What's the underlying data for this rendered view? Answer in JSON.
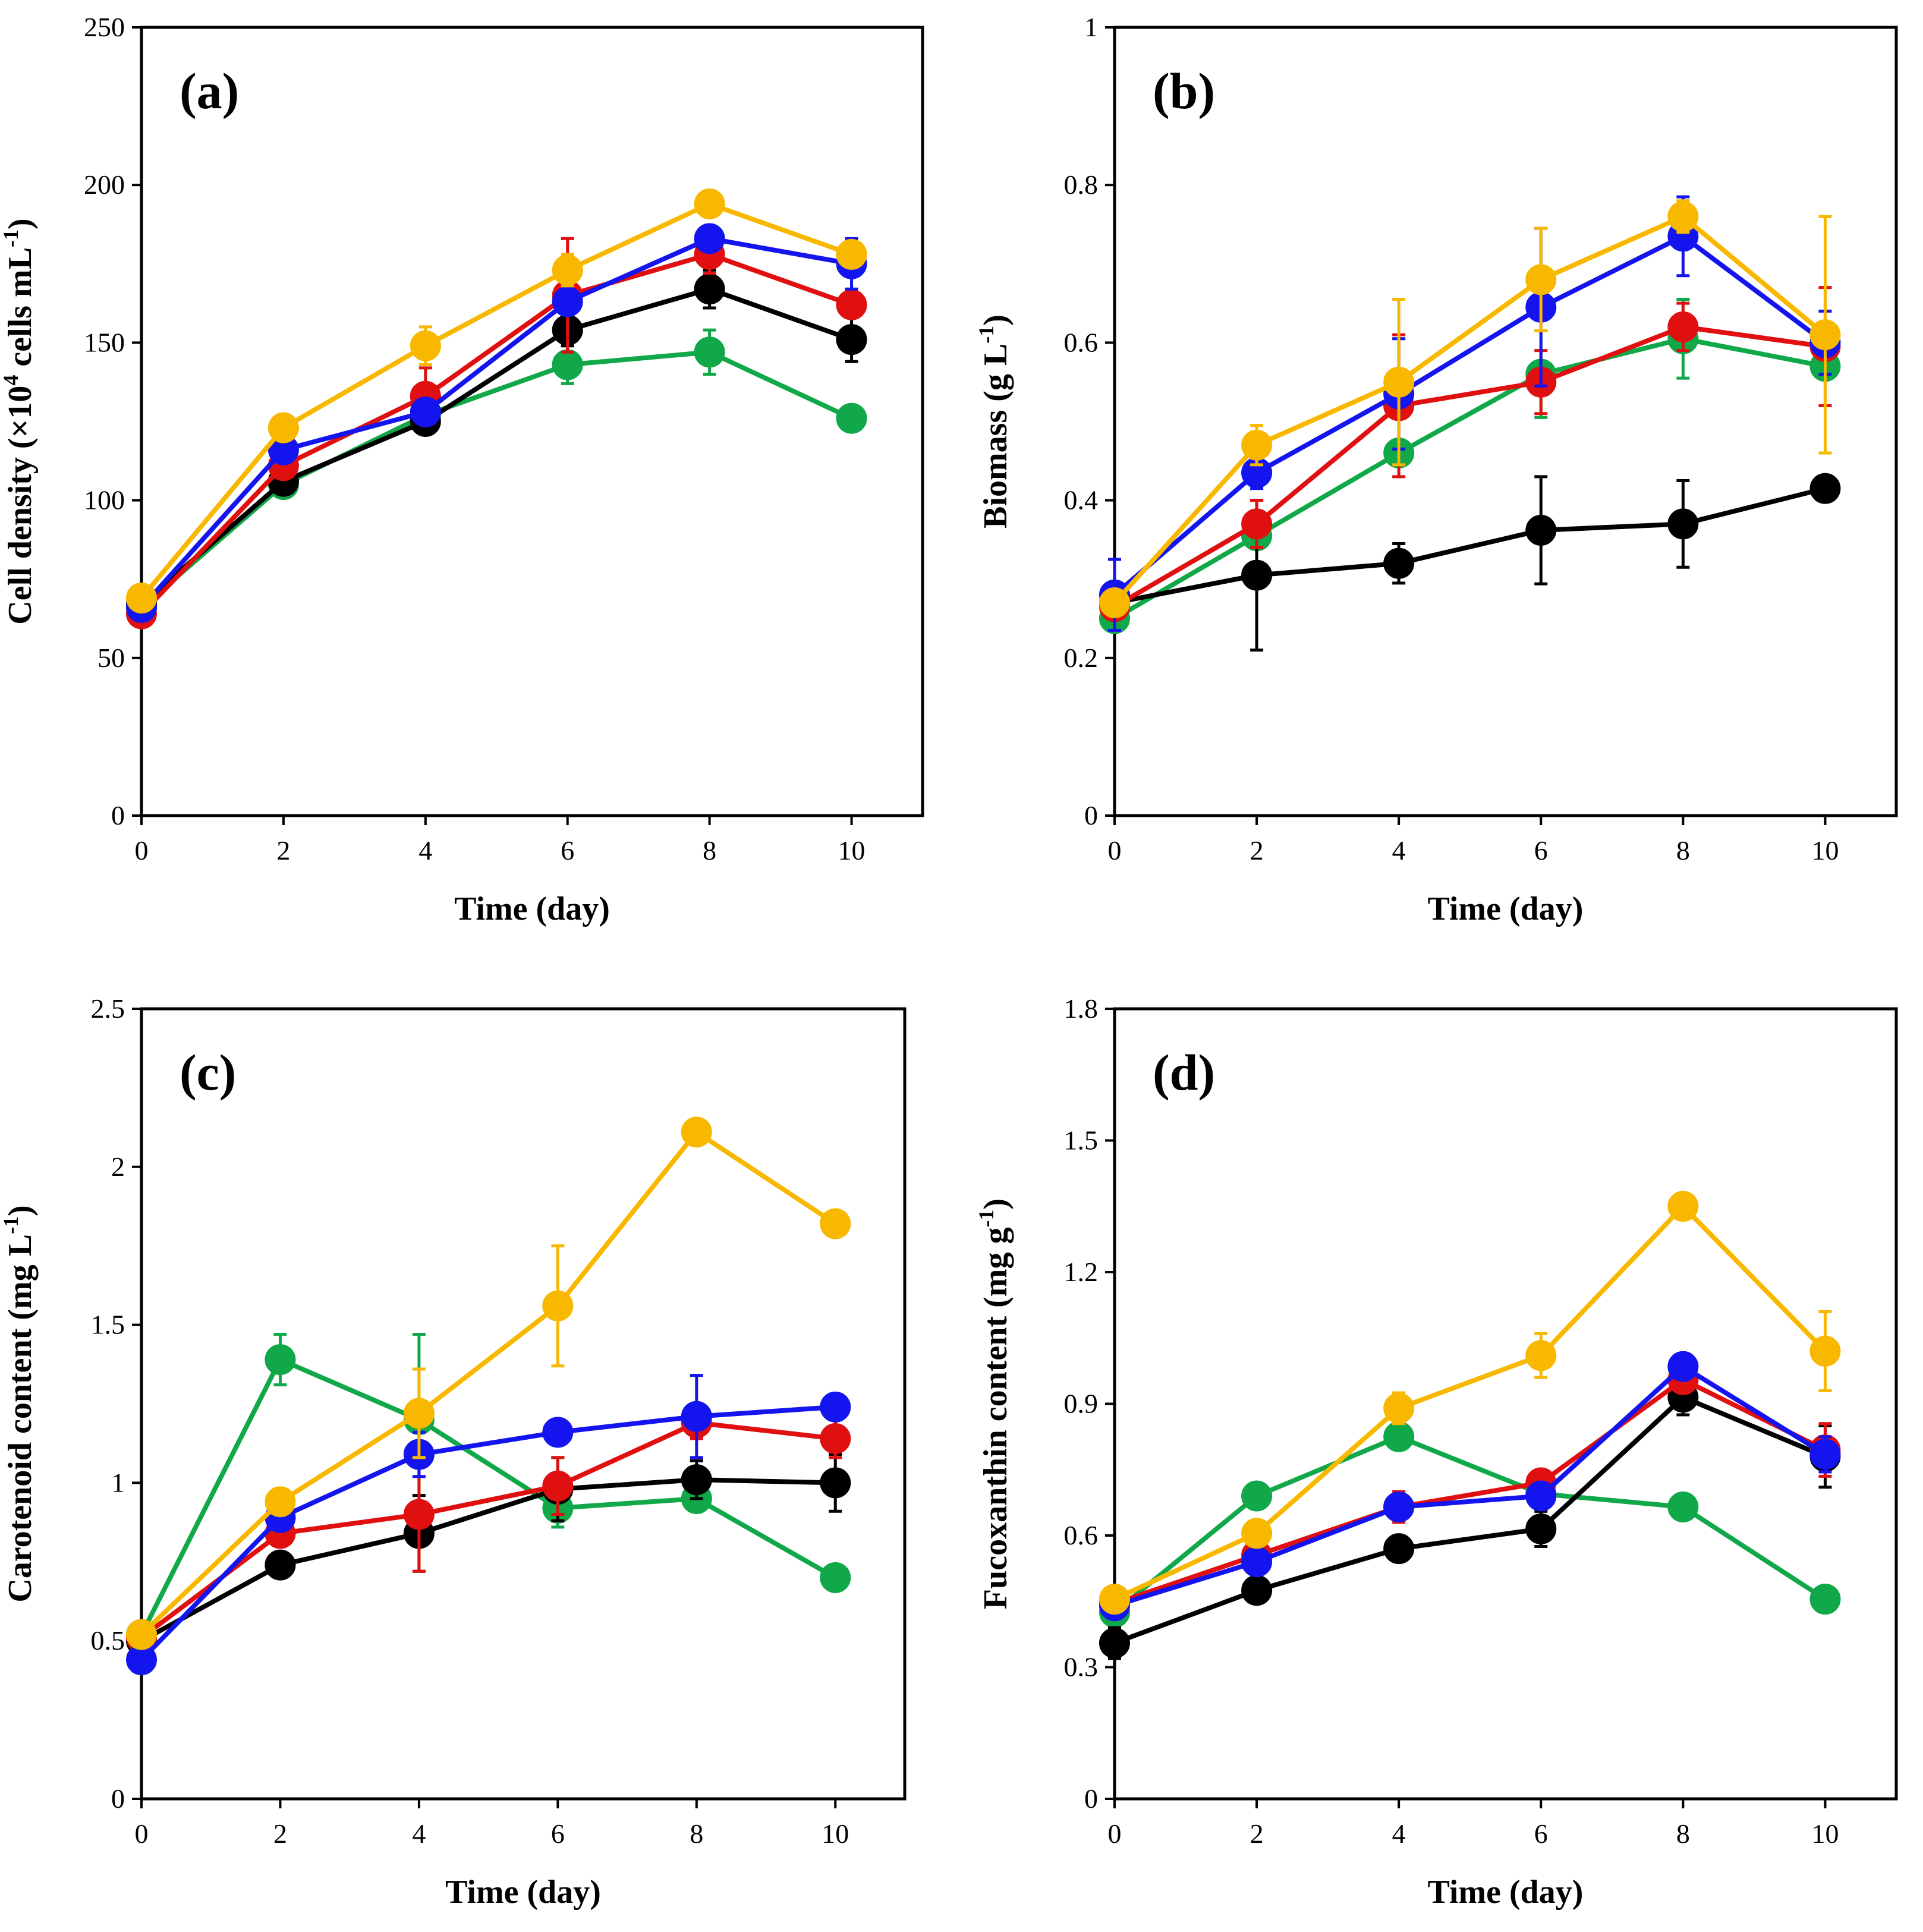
{
  "figure": {
    "series_colors": {
      "black": "#000000",
      "red": "#e01010",
      "blue": "#1414ee",
      "green": "#10a848",
      "yellow": "#f8b800"
    }
  },
  "chart_data": [
    {
      "type": "line",
      "panel_label": "(a)",
      "xlabel": "Time (day)",
      "ylabel": "Cell density (×10⁴ cells mL⁻¹)",
      "ylabel_parts": {
        "pre": "Cell density (×10",
        "sup1": "4",
        "mid": " cells mL",
        "sup2": "-1",
        "post": ")"
      },
      "x": [
        0,
        2,
        4,
        6,
        8,
        10
      ],
      "xlim": [
        0,
        11
      ],
      "xticks": [
        "0",
        "2",
        "4",
        "6",
        "8",
        "10"
      ],
      "ylim": [
        0,
        250
      ],
      "yticks": [
        "0",
        "50",
        "100",
        "150",
        "200",
        "250"
      ],
      "series": [
        {
          "color": "black",
          "values": [
            67,
            106,
            125,
            154,
            167,
            151
          ],
          "errors": [
            1,
            2,
            3,
            5,
            6,
            7
          ]
        },
        {
          "color": "red",
          "values": [
            64,
            111,
            133,
            165,
            178,
            162
          ],
          "errors": [
            1,
            2,
            9,
            18,
            6,
            3
          ]
        },
        {
          "color": "blue",
          "values": [
            66,
            116,
            128,
            163,
            183,
            175
          ],
          "errors": [
            1,
            3,
            2,
            3,
            2,
            8
          ]
        },
        {
          "color": "yellow",
          "values": [
            69,
            123,
            149,
            173,
            194,
            178
          ],
          "errors": [
            1,
            2,
            6,
            5,
            2,
            2
          ]
        },
        {
          "color": "green",
          "values": [
            66,
            105,
            127,
            143,
            147,
            126
          ],
          "errors": [
            1,
            3,
            2,
            6,
            7,
            2
          ]
        }
      ]
    },
    {
      "type": "line",
      "panel_label": "(b)",
      "xlabel": "Time (day)",
      "ylabel": "Biomass (g L⁻¹)",
      "ylabel_parts": {
        "pre": "Biomass (g L",
        "sup1": "-1",
        "mid": "",
        "sup2": "",
        "post": ")"
      },
      "x": [
        0,
        2,
        4,
        6,
        8,
        10
      ],
      "xlim": [
        0,
        11
      ],
      "xticks": [
        "0",
        "2",
        "4",
        "6",
        "8",
        "10"
      ],
      "ylim": [
        0,
        1
      ],
      "yticks": [
        "0",
        "0.2",
        "0.4",
        "0.6",
        "0.8",
        "1"
      ],
      "series": [
        {
          "color": "black",
          "values": [
            0.27,
            0.305,
            0.32,
            0.362,
            0.37,
            0.415
          ],
          "errors": [
            0.01,
            0.095,
            0.025,
            0.068,
            0.055,
            0.015
          ]
        },
        {
          "color": "red",
          "values": [
            0.265,
            0.37,
            0.52,
            0.55,
            0.62,
            0.595
          ],
          "errors": [
            0.01,
            0.03,
            0.09,
            0.04,
            0.03,
            0.075
          ]
        },
        {
          "color": "blue",
          "values": [
            0.28,
            0.435,
            0.535,
            0.645,
            0.735,
            0.6
          ],
          "errors": [
            0.045,
            0.02,
            0.07,
            0.1,
            0.05,
            0.04
          ]
        },
        {
          "color": "yellow",
          "values": [
            0.27,
            0.47,
            0.55,
            0.68,
            0.76,
            0.61
          ],
          "errors": [
            0.01,
            0.025,
            0.105,
            0.065,
            0.02,
            0.15
          ]
        },
        {
          "color": "green",
          "values": [
            0.25,
            0.355,
            0.46,
            0.56,
            0.605,
            0.57
          ],
          "errors": [
            0.01,
            0.01,
            0.01,
            0.055,
            0.05,
            0.05
          ]
        }
      ]
    },
    {
      "type": "line",
      "panel_label": "(c)",
      "xlabel": "Time (day)",
      "ylabel": "Carotenoid content (mg L⁻¹)",
      "ylabel_parts": {
        "pre": "Carotenoid content (mg L",
        "sup1": "-1",
        "mid": "",
        "sup2": "",
        "post": ")"
      },
      "x": [
        0,
        2,
        4,
        6,
        8,
        10
      ],
      "xlim": [
        0,
        11
      ],
      "xticks": [
        "0",
        "2",
        "4",
        "6",
        "8",
        "10"
      ],
      "ylim": [
        0,
        2.5
      ],
      "yticks": [
        "0",
        "0.5",
        "1",
        "1.5",
        "2",
        "2.5"
      ],
      "series": [
        {
          "color": "black",
          "values": [
            0.5,
            0.74,
            0.84,
            0.98,
            1.01,
            1.0
          ],
          "errors": [
            0.02,
            0.02,
            0.12,
            0.1,
            0.06,
            0.09
          ]
        },
        {
          "color": "red",
          "values": [
            0.51,
            0.84,
            0.9,
            0.99,
            1.19,
            1.14
          ],
          "errors": [
            0.02,
            0.02,
            0.18,
            0.09,
            0.05,
            0.06
          ]
        },
        {
          "color": "blue",
          "values": [
            0.44,
            0.89,
            1.09,
            1.16,
            1.21,
            1.24
          ],
          "errors": [
            0.02,
            0.02,
            0.07,
            0.02,
            0.13,
            0.02
          ]
        },
        {
          "color": "yellow",
          "values": [
            0.52,
            0.94,
            1.22,
            1.56,
            2.11,
            1.82
          ],
          "errors": [
            0.02,
            0.02,
            0.14,
            0.19,
            0.02,
            0.02
          ]
        },
        {
          "color": "green",
          "values": [
            0.52,
            1.39,
            1.2,
            0.92,
            0.95,
            0.7
          ],
          "errors": [
            0.02,
            0.08,
            0.27,
            0.06,
            0.02,
            0.02
          ]
        }
      ]
    },
    {
      "type": "line",
      "panel_label": "(d)",
      "xlabel": "Time (day)",
      "ylabel": "Fucoxanthin content (mg g⁻¹)",
      "ylabel_parts": {
        "pre": "Fucoxanthin content (mg g",
        "sup1": "-1",
        "mid": "",
        "sup2": "",
        "post": ")"
      },
      "x": [
        0,
        2,
        4,
        6,
        8,
        10
      ],
      "xlim": [
        0,
        11
      ],
      "xticks": [
        "0",
        "2",
        "4",
        "6",
        "8",
        "10"
      ],
      "ylim": [
        0,
        1.8
      ],
      "yticks": [
        "0",
        "0.3",
        "0.6",
        "0.9",
        "1.2",
        "1.5",
        "1.8"
      ],
      "series": [
        {
          "color": "black",
          "values": [
            0.355,
            0.475,
            0.57,
            0.615,
            0.915,
            0.78
          ],
          "errors": [
            0.035,
            0.01,
            0.015,
            0.04,
            0.04,
            0.07
          ]
        },
        {
          "color": "red",
          "values": [
            0.445,
            0.555,
            0.665,
            0.72,
            0.955,
            0.795
          ],
          "errors": [
            0.01,
            0.01,
            0.035,
            0.02,
            0.02,
            0.06
          ]
        },
        {
          "color": "blue",
          "values": [
            0.44,
            0.54,
            0.665,
            0.69,
            0.985,
            0.785
          ],
          "errors": [
            0.01,
            0.015,
            0.02,
            0.02,
            0.02,
            0.04
          ]
        },
        {
          "color": "yellow",
          "values": [
            0.455,
            0.605,
            0.89,
            1.01,
            1.35,
            1.02
          ],
          "errors": [
            0.01,
            0.02,
            0.035,
            0.05,
            0.01,
            0.09
          ]
        },
        {
          "color": "green",
          "values": [
            0.425,
            0.69,
            0.825,
            0.695,
            0.665,
            0.455
          ],
          "errors": [
            0.01,
            0.01,
            0.01,
            0.01,
            0.01,
            0.01
          ]
        }
      ]
    }
  ]
}
